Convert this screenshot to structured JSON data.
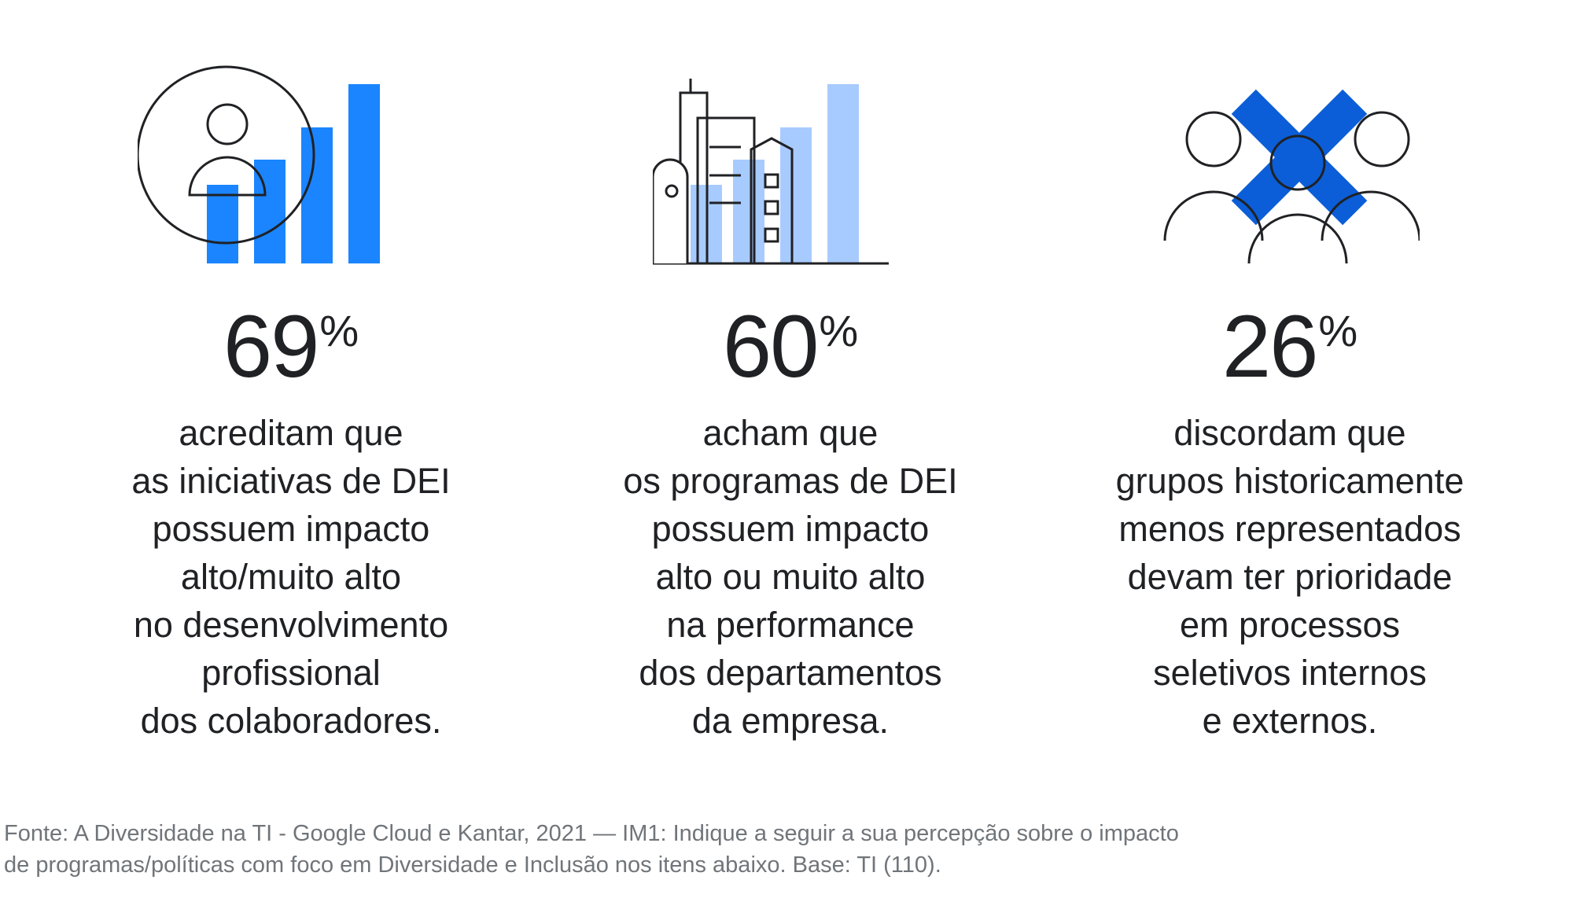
{
  "stats": [
    {
      "value": "69",
      "unit": "%",
      "lines": [
        "acreditam que",
        "as iniciativas de DEI",
        "possuem impacto",
        "alto/muito alto",
        "no desenvolvimento",
        "profissional",
        "dos colaboradores."
      ],
      "icon": "person-growth-bars-icon",
      "accent": "#1a85ff"
    },
    {
      "value": "60",
      "unit": "%",
      "lines": [
        "acham que",
        "os programas de DEI",
        "possuem impacto",
        "alto ou muito alto",
        "na performance",
        "dos departamentos",
        "da empresa."
      ],
      "icon": "city-buildings-bars-icon",
      "accent": "#a8cbff"
    },
    {
      "value": "26",
      "unit": "%",
      "lines": [
        "discordam que",
        "grupos historicamente",
        "menos representados",
        "devam ter prioridade",
        "em processos",
        "seletivos internos",
        "e externos."
      ],
      "icon": "people-crossed-out-icon",
      "accent": "#0b5ed7"
    }
  ],
  "source": {
    "line1": "Fonte: A Diversidade na TI - Google Cloud e Kantar, 2021 — IM1: Indique a seguir a sua percepção sobre o impacto",
    "line2": "de programas/políticas com foco em Diversidade e Inclusão nos itens abaixo. Base: TI (110)."
  }
}
